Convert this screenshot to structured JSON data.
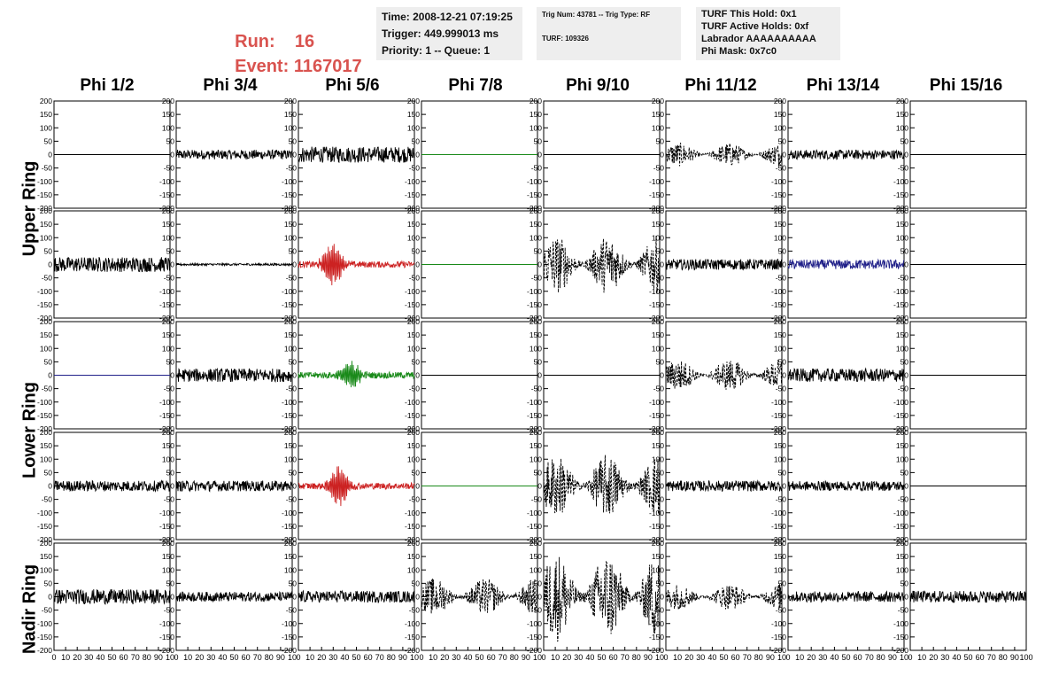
{
  "header": {
    "run_label": "Run:",
    "run_value": "16",
    "event_label": "Event:",
    "event_value": "1167017",
    "time_box": {
      "time": "Time: 2008-12-21 07:19:25",
      "trigger": "Trigger: 449.999013 ms",
      "priority": "Priority: 1 -- Queue: 1"
    },
    "trig_box": {
      "trig": "Trig Num: 43781 -- Trig Type: RF",
      "turf": "TURF: 109326"
    },
    "turf_box": {
      "hold": "TURF This Hold: 0x1",
      "active": "TURF Active Holds: 0xf",
      "labrador": "Labrador AAAAAAAAAA",
      "phimask": "Phi Mask: 0x7c0"
    }
  },
  "columns": [
    "Phi 1/2",
    "Phi 3/4",
    "Phi 5/6",
    "Phi 7/8",
    "Phi 9/10",
    "Phi 11/12",
    "Phi 13/14",
    "Phi 15/16"
  ],
  "row_labels": [
    "Upper Ring",
    "Lower Ring",
    "Nadir Ring"
  ],
  "colors": {
    "black": "#000000",
    "red": "#cc2222",
    "green": "#1a8a1a",
    "blue": "#22228a"
  },
  "chart_data": {
    "type": "line",
    "xlim": [
      0,
      100
    ],
    "ylim": [
      -200,
      200
    ],
    "y_ticks": [
      -200,
      -150,
      -100,
      -50,
      0,
      50,
      100,
      150,
      200
    ],
    "x_ticks_labels": [
      "0",
      "10",
      "20",
      "30",
      "40",
      "50",
      "60",
      "70",
      "80",
      "90",
      "100"
    ],
    "x_tick_labels_compact": [
      "0",
      "10",
      "20",
      "30",
      "40",
      "50",
      "60",
      "70",
      "80",
      "90",
      "10"
    ],
    "last_x_tick_label": "100",
    "panels": [
      {
        "row": 0,
        "col": 0,
        "amp": 0,
        "style": "flat",
        "color": "black"
      },
      {
        "row": 0,
        "col": 1,
        "amp": 18,
        "style": "noise",
        "color": "black"
      },
      {
        "row": 0,
        "col": 2,
        "amp": 30,
        "style": "noise",
        "color": "black"
      },
      {
        "row": 0,
        "col": 3,
        "amp": 0,
        "style": "flat",
        "color": "green"
      },
      {
        "row": 0,
        "col": 4,
        "amp": 0,
        "style": "flat",
        "color": "black"
      },
      {
        "row": 0,
        "col": 5,
        "amp": 45,
        "style": "dashed",
        "color": "black"
      },
      {
        "row": 0,
        "col": 6,
        "amp": 18,
        "style": "noise",
        "color": "black"
      },
      {
        "row": 0,
        "col": 7,
        "amp": 0,
        "style": "flat",
        "color": "black"
      },
      {
        "row": 1,
        "col": 0,
        "amp": 28,
        "style": "noise",
        "color": "black"
      },
      {
        "row": 1,
        "col": 1,
        "amp": 4,
        "style": "noise",
        "color": "black"
      },
      {
        "row": 1,
        "col": 2,
        "amp": 75,
        "style": "pulse",
        "color": "red",
        "center": 30
      },
      {
        "row": 1,
        "col": 3,
        "amp": 0,
        "style": "flat",
        "color": "green"
      },
      {
        "row": 1,
        "col": 4,
        "amp": 110,
        "style": "dashed",
        "color": "black"
      },
      {
        "row": 1,
        "col": 5,
        "amp": 20,
        "style": "noise",
        "color": "black"
      },
      {
        "row": 1,
        "col": 6,
        "amp": 18,
        "style": "noise",
        "color": "blue"
      },
      {
        "row": 1,
        "col": 7,
        "amp": 0,
        "style": "flat",
        "color": "black"
      },
      {
        "row": 2,
        "col": 0,
        "amp": 0,
        "style": "flat",
        "color": "blue"
      },
      {
        "row": 2,
        "col": 1,
        "amp": 25,
        "style": "noise",
        "color": "black"
      },
      {
        "row": 2,
        "col": 2,
        "amp": 45,
        "style": "pulse",
        "color": "green",
        "center": 45
      },
      {
        "row": 2,
        "col": 3,
        "amp": 0,
        "style": "flat",
        "color": "black"
      },
      {
        "row": 2,
        "col": 4,
        "amp": 0,
        "style": "flat",
        "color": "black"
      },
      {
        "row": 2,
        "col": 5,
        "amp": 60,
        "style": "dashed",
        "color": "black"
      },
      {
        "row": 2,
        "col": 6,
        "amp": 25,
        "style": "noise",
        "color": "black"
      },
      {
        "row": 2,
        "col": 7,
        "amp": 0,
        "style": "flat",
        "color": "black"
      },
      {
        "row": 3,
        "col": 0,
        "amp": 20,
        "style": "noise",
        "color": "black"
      },
      {
        "row": 3,
        "col": 1,
        "amp": 20,
        "style": "noise",
        "color": "black"
      },
      {
        "row": 3,
        "col": 2,
        "amp": 70,
        "style": "pulse",
        "color": "red",
        "center": 35
      },
      {
        "row": 3,
        "col": 3,
        "amp": 0,
        "style": "flat",
        "color": "green"
      },
      {
        "row": 3,
        "col": 4,
        "amp": 120,
        "style": "dashed",
        "color": "black"
      },
      {
        "row": 3,
        "col": 5,
        "amp": 20,
        "style": "noise",
        "color": "black"
      },
      {
        "row": 3,
        "col": 6,
        "amp": 18,
        "style": "noise",
        "color": "black"
      },
      {
        "row": 3,
        "col": 7,
        "amp": 0,
        "style": "flat",
        "color": "black"
      },
      {
        "row": 4,
        "col": 0,
        "amp": 28,
        "style": "noise",
        "color": "black"
      },
      {
        "row": 4,
        "col": 1,
        "amp": 18,
        "style": "noise",
        "color": "black"
      },
      {
        "row": 4,
        "col": 2,
        "amp": 22,
        "style": "noise",
        "color": "black"
      },
      {
        "row": 4,
        "col": 3,
        "amp": 70,
        "style": "dashed",
        "color": "black"
      },
      {
        "row": 4,
        "col": 4,
        "amp": 170,
        "style": "dashed",
        "color": "black"
      },
      {
        "row": 4,
        "col": 5,
        "amp": 50,
        "style": "dashed",
        "color": "black"
      },
      {
        "row": 4,
        "col": 6,
        "amp": 20,
        "style": "noise",
        "color": "black"
      },
      {
        "row": 4,
        "col": 7,
        "amp": 22,
        "style": "noise",
        "color": "black"
      }
    ]
  }
}
